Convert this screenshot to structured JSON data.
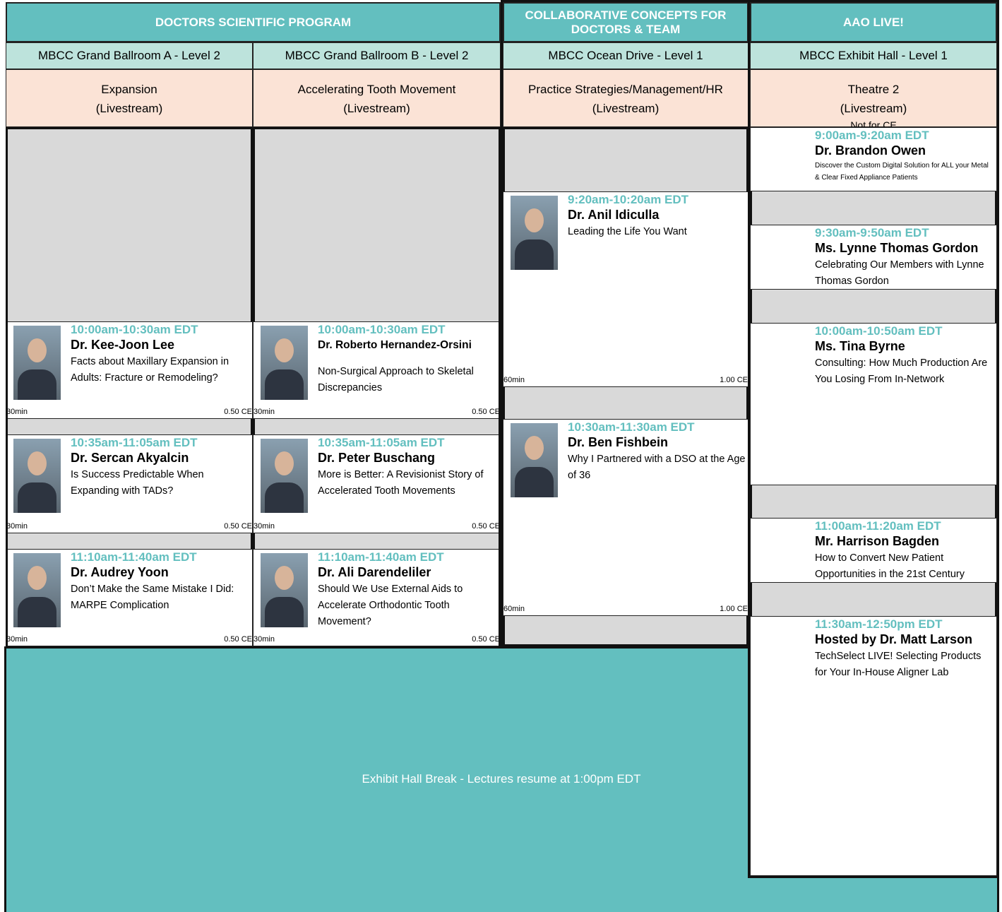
{
  "headers": [
    {
      "title": "DOCTORS SCIENTIFIC PROGRAM"
    },
    {
      "title": "COLLABORATIVE CONCEPTS FOR DOCTORS & TEAM"
    },
    {
      "title": "AAO LIVE!"
    }
  ],
  "rooms": [
    "MBCC Grand Ballroom A - Level 2",
    "MBCC Grand Ballroom B - Level 2",
    "MBCC Ocean Drive - Level 1",
    "MBCC Exhibit Hall - Level 1"
  ],
  "tracks": [
    {
      "name": "Expansion",
      "note": "(Livestream)"
    },
    {
      "name": "Accelerating Tooth Movement",
      "note": "(Livestream)"
    },
    {
      "name": "Practice Strategies/Management/HR",
      "note": "(Livestream)"
    },
    {
      "name": "Theatre 2",
      "note": "(Livestream)",
      "extra": "Not for CE"
    }
  ],
  "columns": [
    {
      "sessions": [
        {
          "time": "10:00am-10:30am EDT",
          "speaker": "Dr. Kee-Joon Lee",
          "title": "Facts about Maxillary Expansion in Adults: Fracture or Remodeling?",
          "duration": "30min",
          "ce": "0.50 CE"
        },
        {
          "time": "10:35am-11:05am EDT",
          "speaker": "Dr. Sercan Akyalcin",
          "title": "Is Success Predictable When Expanding with TADs?",
          "duration": "30min",
          "ce": "0.50 CE"
        },
        {
          "time": "11:10am-11:40am EDT",
          "speaker": "Dr. Audrey Yoon",
          "title": "Don’t Make the Same Mistake I Did: MARPE Complication",
          "duration": "30min",
          "ce": "0.50 CE"
        }
      ]
    },
    {
      "sessions": [
        {
          "time": "10:00am-10:30am EDT",
          "speaker": "Dr. Roberto Hernandez-Orsini",
          "title": "Non-Surgical Approach to Skeletal Discrepancies",
          "duration": "30min",
          "ce": "0.50 CE"
        },
        {
          "time": "10:35am-11:05am EDT",
          "speaker": "Dr. Peter Buschang",
          "title": "More is Better: A Revisionist Story of Accelerated Tooth Movements",
          "duration": "30min",
          "ce": "0.50 CE"
        },
        {
          "time": "11:10am-11:40am EDT",
          "speaker": "Dr. Ali Darendeliler",
          "title": "Should We Use External Aids to Accelerate Orthodontic Tooth Movement?",
          "duration": "30min",
          "ce": "0.50 CE"
        }
      ]
    },
    {
      "sessions": [
        {
          "time": "9:20am-10:20am EDT",
          "speaker": "Dr. Anil Idiculla",
          "title": "Leading the Life You Want",
          "duration": "60min",
          "ce": "1.00 CE"
        },
        {
          "time": "10:30am-11:30am EDT",
          "speaker": "Dr. Ben Fishbein",
          "title": "Why I Partnered with a DSO at the Age of 36",
          "duration": "60min",
          "ce": "1.00 CE"
        }
      ]
    },
    {
      "sessions": [
        {
          "time": "9:00am-9:20am EDT",
          "speaker": "Dr. Brandon Owen",
          "title": "Discover the Custom Digital Solution for ALL your Metal & Clear Fixed Appliance Patients"
        },
        {
          "time": "9:30am-9:50am EDT",
          "speaker": "Ms. Lynne Thomas Gordon",
          "title": "Celebrating Our Members with Lynne Thomas Gordon"
        },
        {
          "time": "10:00am-10:50am EDT",
          "speaker": "Ms. Tina Byrne",
          "title": "Consulting: How Much Production Are You Losing From In-Network"
        },
        {
          "time": "11:00am-11:20am EDT",
          "speaker": "Mr. Harrison Bagden",
          "title": "How to Convert New Patient Opportunities in the 21st Century"
        },
        {
          "time": "11:30am-12:50pm EDT",
          "speaker": "Hosted by Dr. Matt Larson",
          "title": "TechSelect LIVE! Selecting Products for Your In-House Aligner Lab"
        }
      ]
    }
  ],
  "break": "Exhibit Hall Break - Lectures resume at 1:00pm EDT"
}
